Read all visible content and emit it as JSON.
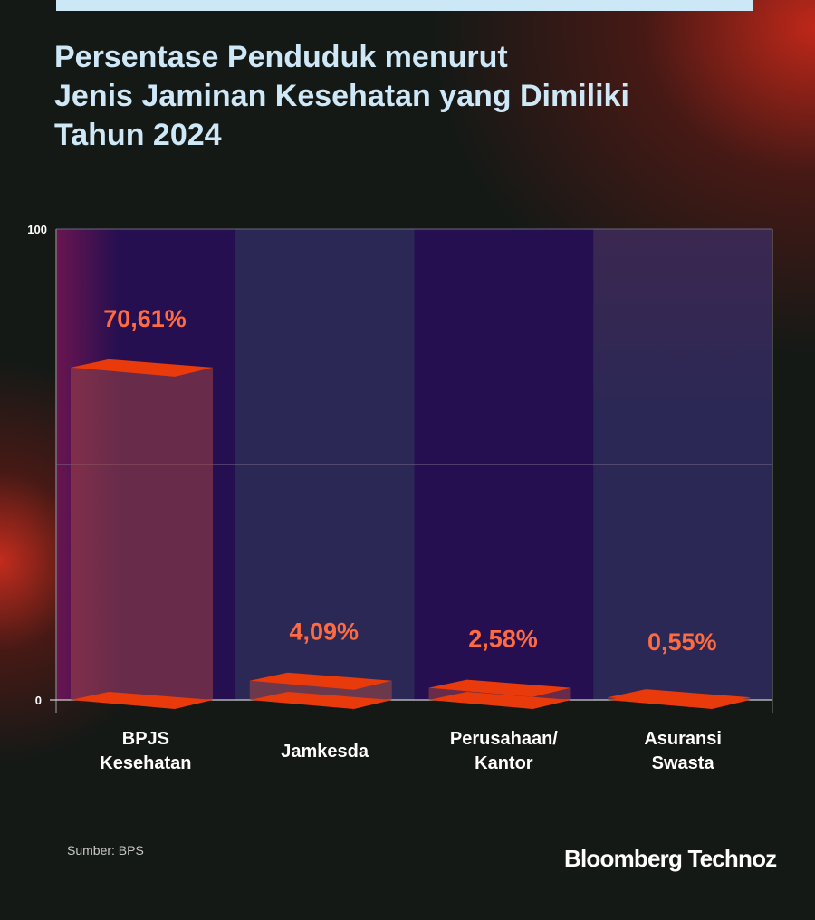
{
  "title_lines": [
    "Persentase Penduduk menurut",
    "Jenis Jaminan Kesehatan yang Dimiliki",
    "Tahun 2024"
  ],
  "source": "Sumber: BPS",
  "logo": "Bloomberg Technoz",
  "colors": {
    "bar_top": "#e83a0a",
    "bar_body": "rgba(160,70,70,0.55)",
    "label": "#ff6a40",
    "col_a": "#250f50",
    "col_b": "#2b2855",
    "title": "#cfe8f7"
  },
  "chart_data": {
    "type": "bar",
    "title": "Persentase Penduduk menurut Jenis Jaminan Kesehatan yang Dimiliki Tahun 2024",
    "categories": [
      [
        "BPJS",
        "Kesehatan"
      ],
      [
        "Jamkesda"
      ],
      [
        "Perusahaan/",
        "Kantor"
      ],
      [
        "Asuransi",
        "Swasta"
      ]
    ],
    "values": [
      70.61,
      4.09,
      2.58,
      0.55
    ],
    "value_labels": [
      "70,61%",
      "4,09%",
      "2,58%",
      "0,55%"
    ],
    "yticks": [
      "0",
      "100"
    ],
    "ylim": [
      0,
      100
    ],
    "grid": true,
    "xlabel": "",
    "ylabel": ""
  }
}
